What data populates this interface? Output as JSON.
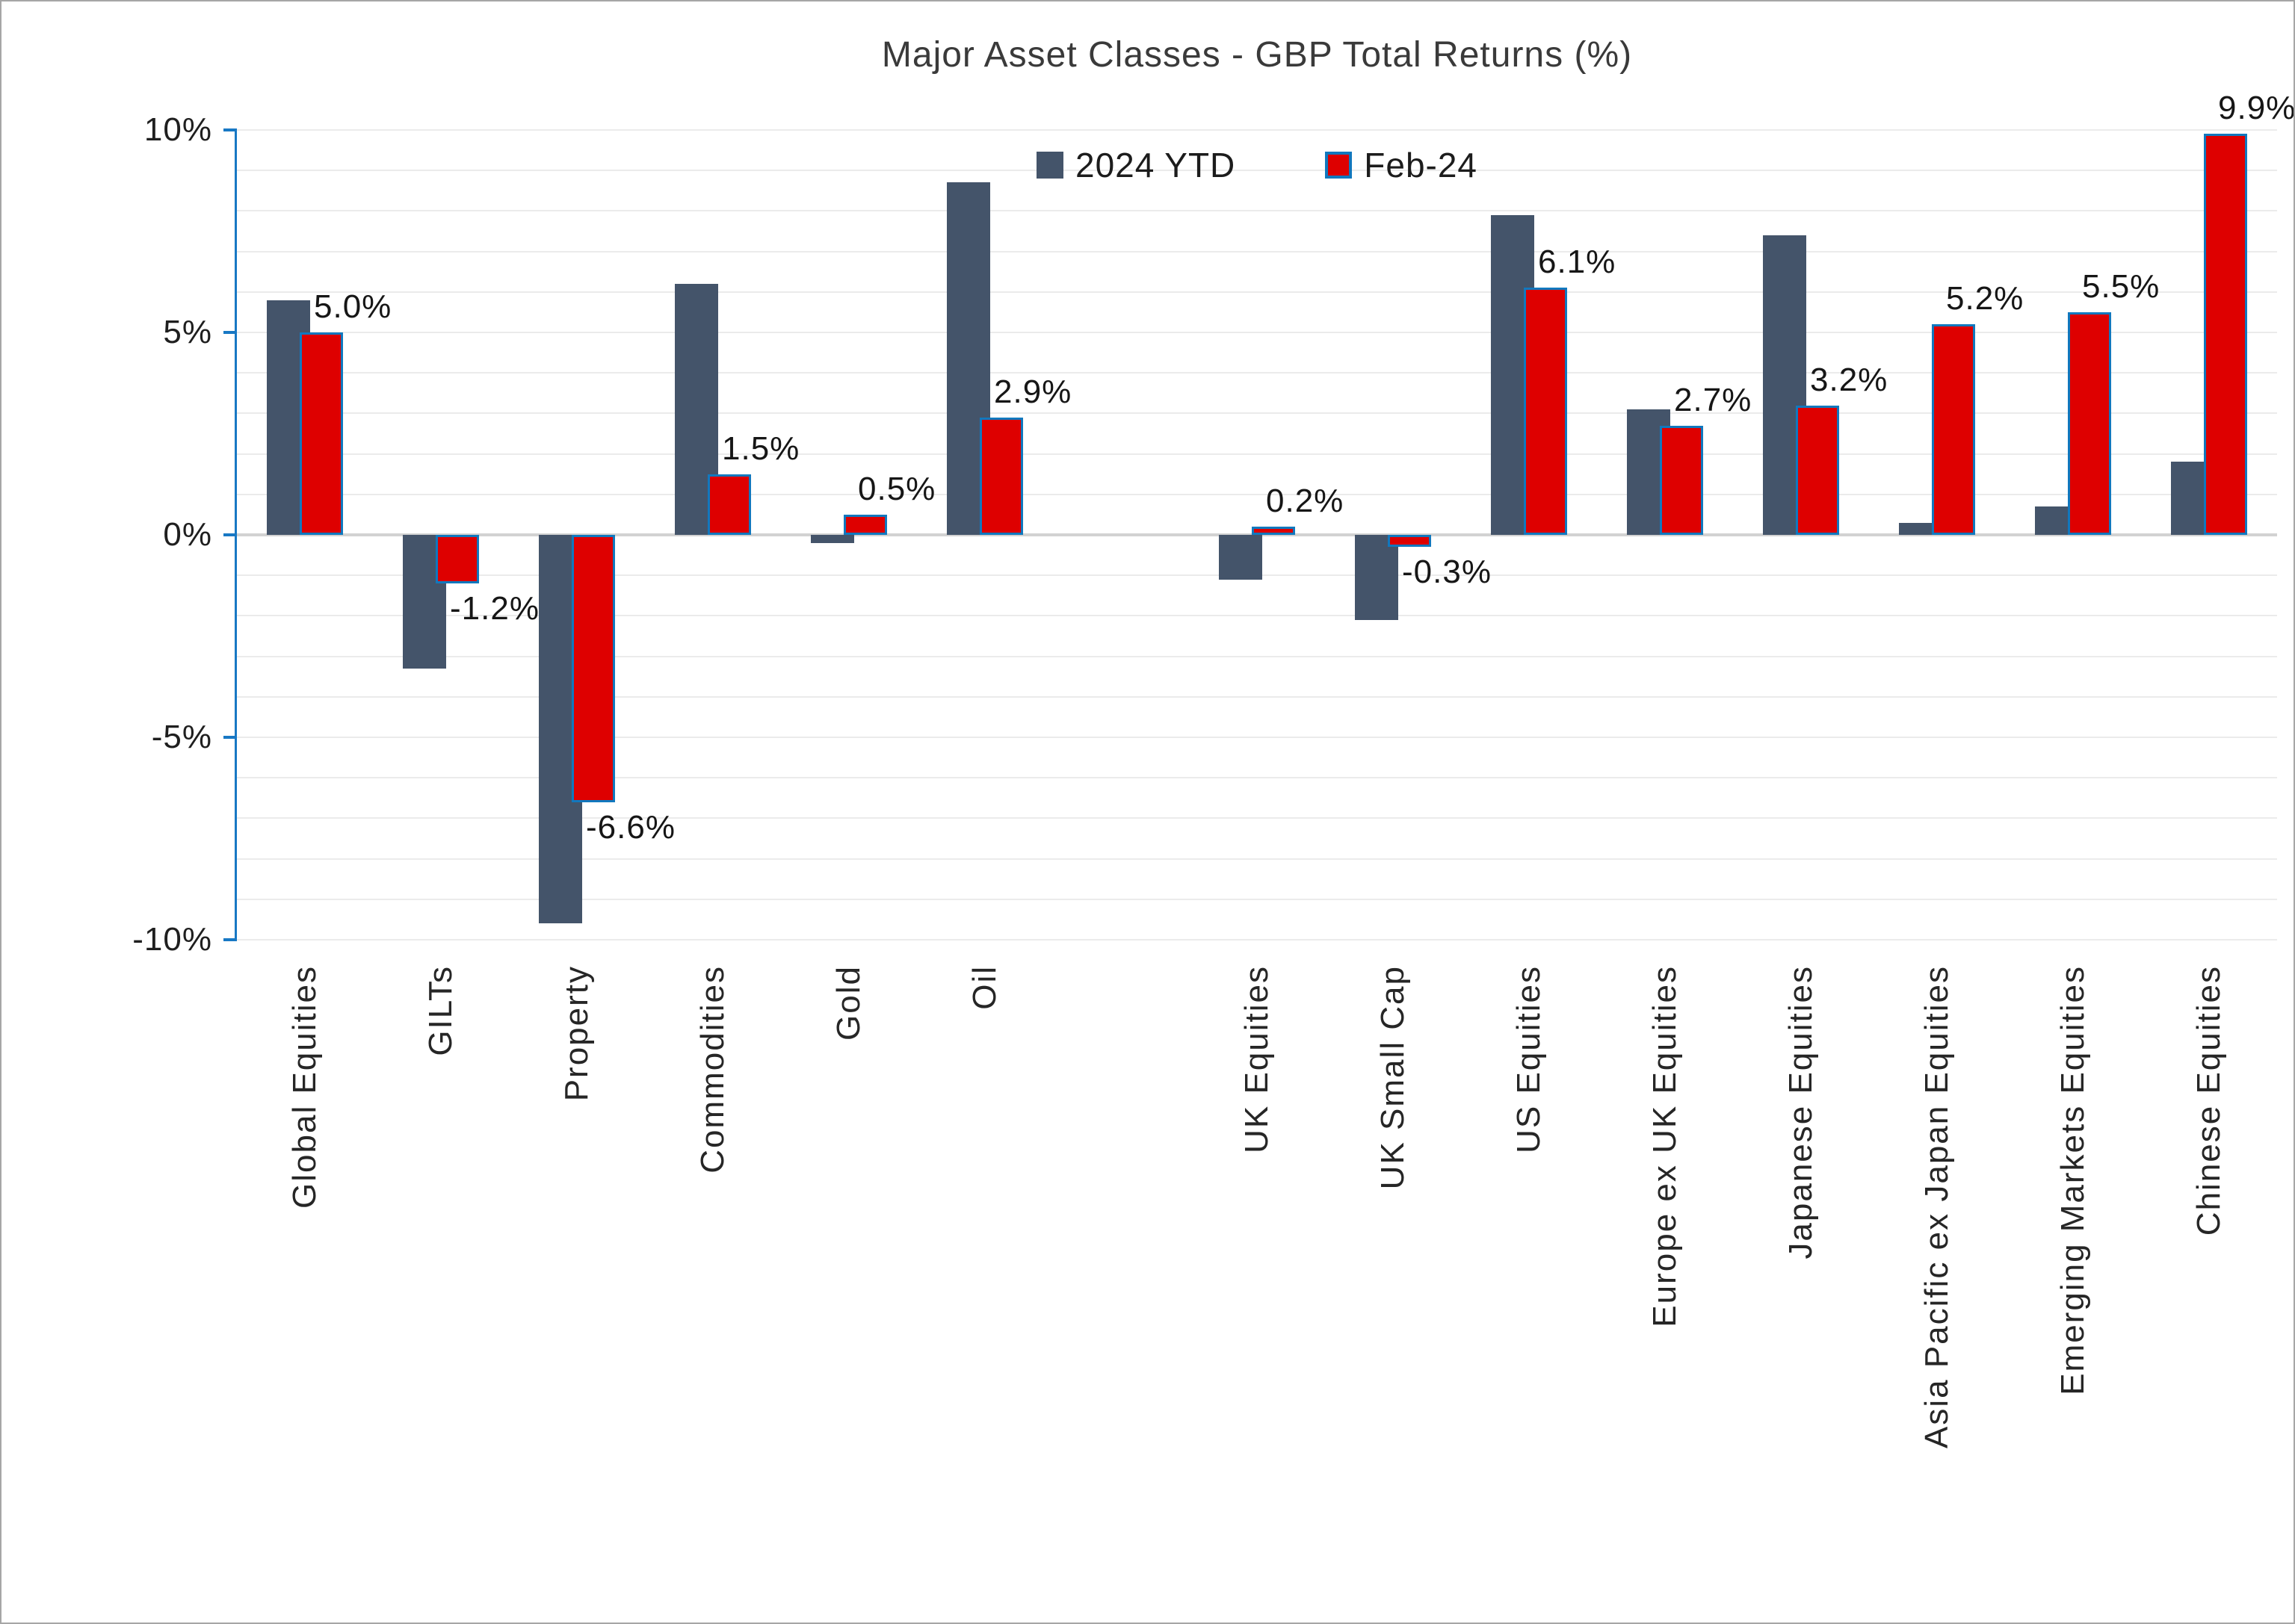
{
  "page": {
    "background": "#FFFFFF",
    "border_color": "#A6A6A6"
  },
  "chart_data": {
    "type": "bar",
    "title": "Major Asset Classes - GBP Total Returns (%)",
    "categories": [
      "Global Equities",
      "GILTs",
      "Property",
      "Commodities",
      "Gold",
      "Oil",
      "UK Equities",
      "UK Small Cap",
      "US Equities",
      "Europe ex UK Equities",
      "Japanese Equities",
      "Asia Pacific ex Japan Equities",
      "Emerging Markets Equities",
      "Chinese Equities"
    ],
    "series": [
      {
        "name": "2024 YTD",
        "color": "#44546A",
        "values": [
          5.8,
          -3.3,
          -9.6,
          6.2,
          -0.2,
          8.7,
          -1.1,
          -2.1,
          7.9,
          3.1,
          7.4,
          0.3,
          0.7,
          1.8
        ],
        "show_data_labels": false
      },
      {
        "name": "Feb-24",
        "color": "#DE0000",
        "border_color": "#1178BE",
        "values": [
          5.0,
          -1.2,
          -6.6,
          1.5,
          0.5,
          2.9,
          0.2,
          -0.3,
          6.1,
          2.7,
          3.2,
          5.2,
          5.5,
          9.9
        ],
        "show_data_labels": true,
        "data_labels": [
          "5.0%",
          "-1.2%",
          "-6.6%",
          "1.5%",
          "0.5%",
          "2.9%",
          "0.2%",
          "-0.3%",
          "6.1%",
          "2.7%",
          "3.2%",
          "5.2%",
          "5.5%",
          "9.9%"
        ]
      }
    ],
    "y_ticks": [
      {
        "label": "10%",
        "value": 10
      },
      {
        "label": "5%",
        "value": 5
      },
      {
        "label": "0%",
        "value": 0
      },
      {
        "label": "-5%",
        "value": -5
      },
      {
        "label": "-10%",
        "value": -10
      }
    ],
    "ylim": [
      -10,
      10
    ],
    "minor_grid_step_pct": 1,
    "separator_after_category_index": 5,
    "legend_position": "top",
    "grid": "horizontal minor gridlines every 1%",
    "axis_color": "#1878C4",
    "grid_color": "#EBEBEB",
    "zero_line_color": "#D2D2D2"
  }
}
